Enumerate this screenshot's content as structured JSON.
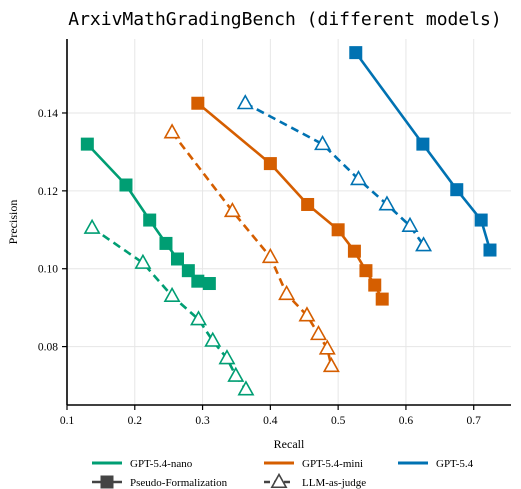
{
  "chart_data": {
    "type": "line",
    "title": "ArxivMathGradingBench (different models)",
    "xlabel": "Recall",
    "ylabel": "Precision",
    "xlim": [
      0.1,
      0.755
    ],
    "ylim": [
      0.065,
      0.159
    ],
    "xticks": [
      0.1,
      0.2,
      0.3,
      0.4,
      0.5,
      0.6,
      0.7
    ],
    "xtick_labels": [
      "0.1",
      "0.2",
      "0.3",
      "0.4",
      "0.5",
      "0.6",
      "0.7"
    ],
    "yticks": [
      0.08,
      0.1,
      0.12,
      0.14
    ],
    "ytick_labels": [
      "0.08",
      "0.10",
      "0.12",
      "0.14"
    ],
    "grid": true,
    "legend": {
      "placement": "bottom-center",
      "colors": [
        {
          "label": "GPT-5.4-nano",
          "color": "#009E73"
        },
        {
          "label": "GPT-5.4-mini",
          "color": "#D55E00"
        },
        {
          "label": "GPT-5.4",
          "color": "#0072B2"
        }
      ],
      "methods": [
        {
          "label": "Pseudo-Formalization",
          "marker": "square",
          "linestyle": "solid"
        },
        {
          "label": "LLM-as-judge",
          "marker": "triangle",
          "linestyle": "dashed"
        }
      ]
    },
    "series": [
      {
        "model": "GPT-5.4-nano",
        "method": "Pseudo-Formalization",
        "color": "#009E73",
        "x": [
          0.13,
          0.187,
          0.222,
          0.246,
          0.263,
          0.279,
          0.293,
          0.31
        ],
        "y": [
          0.132,
          0.1215,
          0.1125,
          0.1065,
          0.1025,
          0.0995,
          0.0968,
          0.0962
        ]
      },
      {
        "model": "GPT-5.4-nano",
        "method": "LLM-as-judge",
        "color": "#009E73",
        "x": [
          0.137,
          0.212,
          0.255,
          0.294,
          0.315,
          0.336,
          0.349,
          0.364
        ],
        "y": [
          0.1105,
          0.1015,
          0.093,
          0.087,
          0.0815,
          0.077,
          0.0725,
          0.069
        ]
      },
      {
        "model": "GPT-5.4-mini",
        "method": "Pseudo-Formalization",
        "color": "#D55E00",
        "x": [
          0.293,
          0.4,
          0.455,
          0.5,
          0.524,
          0.541,
          0.554,
          0.565
        ],
        "y": [
          0.1425,
          0.127,
          0.1165,
          0.11,
          0.1045,
          0.0995,
          0.0958,
          0.0922
        ]
      },
      {
        "model": "GPT-5.4-mini",
        "method": "LLM-as-judge",
        "color": "#D55E00",
        "x": [
          0.255,
          0.344,
          0.4,
          0.424,
          0.454,
          0.471,
          0.484,
          0.49
        ],
        "y": [
          0.135,
          0.1148,
          0.103,
          0.0935,
          0.088,
          0.0832,
          0.0795,
          0.075
        ]
      },
      {
        "model": "GPT-5.4",
        "method": "Pseudo-Formalization",
        "color": "#0072B2",
        "x": [
          0.526,
          0.625,
          0.675,
          0.711,
          0.724
        ],
        "y": [
          0.1555,
          0.132,
          0.1203,
          0.1125,
          0.1048
        ]
      },
      {
        "model": "GPT-5.4",
        "method": "LLM-as-judge",
        "color": "#0072B2",
        "x": [
          0.363,
          0.477,
          0.53,
          0.572,
          0.606,
          0.626
        ],
        "y": [
          0.1425,
          0.132,
          0.123,
          0.1165,
          0.111,
          0.106
        ]
      }
    ]
  }
}
